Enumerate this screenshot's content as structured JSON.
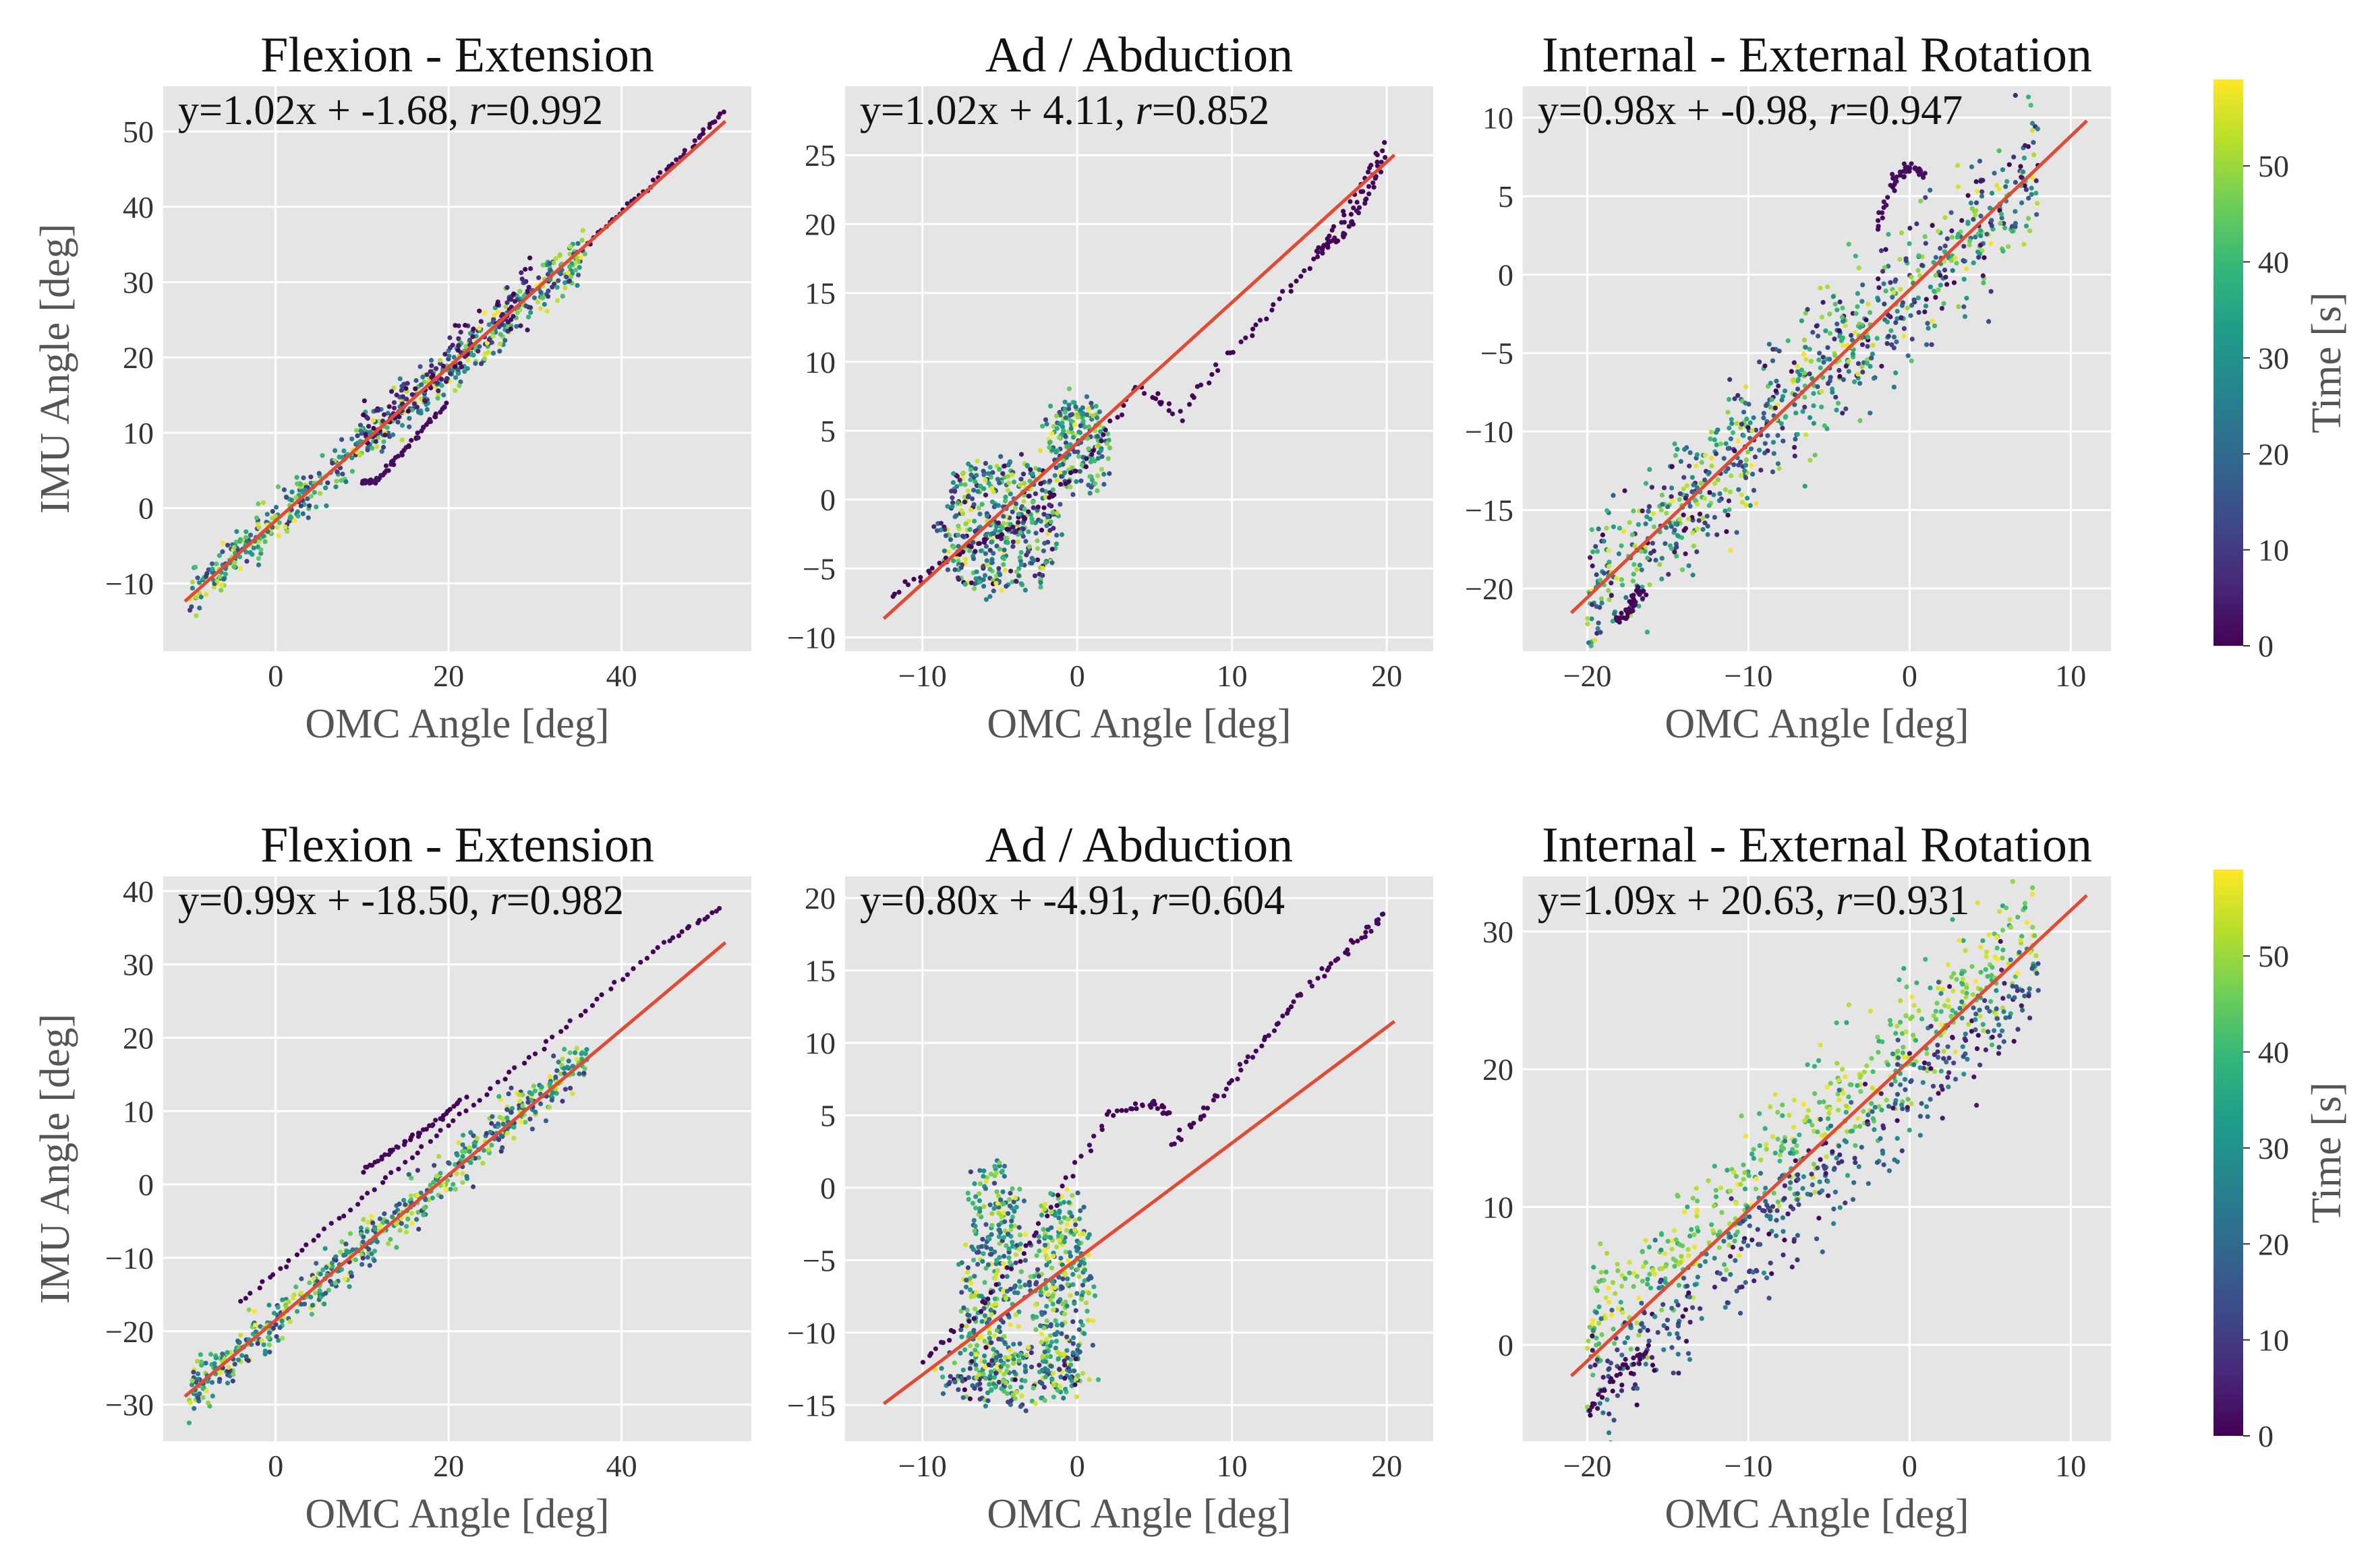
{
  "figure": {
    "colorbar": {
      "label": "Time [s]",
      "min": 0,
      "max": 59,
      "ticks": [
        "0",
        "10",
        "20",
        "30",
        "40",
        "50"
      ]
    },
    "colors": {
      "panel_bg": "#e5e5e5",
      "grid": "#ffffff",
      "fit_line": "#e24a33",
      "colormap": [
        "#440154",
        "#482878",
        "#3e4a89",
        "#31688e",
        "#26828e",
        "#1f9e89",
        "#35b779",
        "#6ece58",
        "#b5de2b",
        "#fde725"
      ]
    }
  },
  "chart_data": [
    {
      "type": "scatter",
      "title": "Flexion - Extension",
      "xlabel": "OMC Angle [deg]",
      "ylabel": "IMU Angle [deg]",
      "eq": {
        "prefix": "y=1.02x + -1.68, ",
        "r_label": "r",
        "r_value": "=0.992"
      },
      "fit": {
        "slope": 1.02,
        "intercept": -1.68,
        "x_range": [
          -10.5,
          52
        ]
      },
      "xlim": [
        -13,
        55
      ],
      "ylim": [
        -19,
        56
      ],
      "xticks": [
        {
          "v": 0,
          "label": "0"
        },
        {
          "v": 20,
          "label": "20"
        },
        {
          "v": 40,
          "label": "40"
        }
      ],
      "yticks": [
        {
          "v": -10,
          "label": "−10"
        },
        {
          "v": 0,
          "label": "0"
        },
        {
          "v": 10,
          "label": "10"
        },
        {
          "v": 20,
          "label": "20"
        },
        {
          "v": 30,
          "label": "30"
        },
        {
          "v": 40,
          "label": "40"
        },
        {
          "v": 50,
          "label": "50"
        }
      ],
      "clusters": [
        {
          "x": [
            -10,
            36
          ],
          "slope": 1.0,
          "intercept": -1.7,
          "spread": 1.6,
          "n": 620,
          "t": [
            8,
            59
          ]
        },
        {
          "x": [
            10,
            30
          ],
          "slope": 1.02,
          "intercept": -0.5,
          "spread": 2.0,
          "n": 120,
          "t": [
            0,
            8
          ]
        }
      ],
      "trails": [
        {
          "x": [
            36,
            42,
            48,
            52
          ],
          "y": [
            35,
            41.5,
            48,
            53
          ],
          "t": 0
        },
        {
          "x": [
            10,
            11.5,
            14,
            17,
            20
          ],
          "y": [
            3.5,
            3.5,
            6.5,
            10.5,
            14
          ],
          "t": 1
        }
      ]
    },
    {
      "type": "scatter",
      "title": "Ad / Abduction",
      "xlabel": "OMC Angle [deg]",
      "ylabel": "",
      "eq": {
        "prefix": "y=1.02x + 4.11, ",
        "r_label": "r",
        "r_value": "=0.852"
      },
      "fit": {
        "slope": 1.02,
        "intercept": 4.11,
        "x_range": [
          -12.5,
          20.5
        ]
      },
      "xlim": [
        -15,
        23
      ],
      "ylim": [
        -11,
        30
      ],
      "xticks": [
        {
          "v": -10,
          "label": "−10"
        },
        {
          "v": 0,
          "label": "0"
        },
        {
          "v": 10,
          "label": "10"
        },
        {
          "v": 20,
          "label": "20"
        }
      ],
      "yticks": [
        {
          "v": -10,
          "label": "−10"
        },
        {
          "v": -5,
          "label": "−5"
        },
        {
          "v": 0,
          "label": "0"
        },
        {
          "v": 5,
          "label": "5"
        },
        {
          "v": 10,
          "label": "10"
        },
        {
          "v": 15,
          "label": "15"
        },
        {
          "v": 20,
          "label": "20"
        },
        {
          "v": 25,
          "label": "25"
        }
      ],
      "blobs": [
        {
          "cx": -5,
          "cy": -2,
          "rx": 4,
          "ry": 5,
          "n": 450,
          "t": [
            0,
            59
          ]
        },
        {
          "cx": 0,
          "cy": 4,
          "rx": 2,
          "ry": 3.5,
          "n": 200,
          "t": [
            10,
            59
          ]
        }
      ],
      "trails": [
        {
          "x": [
            -12,
            -8,
            -4,
            0,
            4,
            7
          ],
          "y": [
            -7,
            -4,
            -2,
            2,
            8,
            6
          ],
          "t": 0
        },
        {
          "x": [
            7,
            11,
            15,
            18,
            20
          ],
          "y": [
            7,
            12,
            17,
            22,
            26
          ],
          "t": 0
        },
        {
          "x": [
            15.5,
            17,
            18.5,
            20
          ],
          "y": [
            18,
            19,
            21.5,
            25
          ],
          "t": 0
        }
      ]
    },
    {
      "type": "scatter",
      "title": "Internal - External Rotation",
      "xlabel": "OMC Angle [deg]",
      "ylabel": "",
      "eq": {
        "prefix": "y=0.98x + -0.98, ",
        "r_label": "r",
        "r_value": "=0.947"
      },
      "fit": {
        "slope": 0.98,
        "intercept": -0.98,
        "x_range": [
          -21,
          11
        ]
      },
      "xlim": [
        -24,
        12.5
      ],
      "ylim": [
        -24,
        12
      ],
      "xticks": [
        {
          "v": -20,
          "label": "−20"
        },
        {
          "v": -10,
          "label": "−10"
        },
        {
          "v": 0,
          "label": "0"
        },
        {
          "v": 10,
          "label": "10"
        }
      ],
      "yticks": [
        {
          "v": -20,
          "label": "−20"
        },
        {
          "v": -15,
          "label": "−15"
        },
        {
          "v": -10,
          "label": "−10"
        },
        {
          "v": -5,
          "label": "−5"
        },
        {
          "v": 0,
          "label": "0"
        },
        {
          "v": 5,
          "label": "5"
        },
        {
          "v": 10,
          "label": "10"
        }
      ],
      "clusters": [
        {
          "x": [
            -20,
            8
          ],
          "slope": 0.98,
          "intercept": -1.0,
          "spread": 2.2,
          "n": 850,
          "t": [
            0,
            59
          ]
        }
      ],
      "trails": [
        {
          "x": [
            -18,
            -17.5,
            -17,
            -16.5
          ],
          "y": [
            -22,
            -21.5,
            -20.5,
            -20
          ],
          "t": 0
        },
        {
          "x": [
            -2,
            -1,
            0,
            1
          ],
          "y": [
            3,
            6,
            7,
            6
          ],
          "t": 1
        }
      ]
    },
    {
      "type": "scatter",
      "title": "Flexion - Extension",
      "xlabel": "OMC Angle [deg]",
      "ylabel": "IMU Angle [deg]",
      "eq": {
        "prefix": "y=0.99x + -18.50, ",
        "r_label": "r",
        "r_value": "=0.982"
      },
      "fit": {
        "slope": 0.99,
        "intercept": -18.5,
        "x_range": [
          -10.5,
          52
        ]
      },
      "xlim": [
        -13,
        55
      ],
      "ylim": [
        -35,
        42
      ],
      "xticks": [
        {
          "v": 0,
          "label": "0"
        },
        {
          "v": 20,
          "label": "20"
        },
        {
          "v": 40,
          "label": "40"
        }
      ],
      "yticks": [
        {
          "v": -30,
          "label": "−30"
        },
        {
          "v": -20,
          "label": "−20"
        },
        {
          "v": -10,
          "label": "−10"
        },
        {
          "v": 0,
          "label": "0"
        },
        {
          "v": 10,
          "label": "10"
        },
        {
          "v": 20,
          "label": "20"
        },
        {
          "v": 30,
          "label": "30"
        },
        {
          "v": 40,
          "label": "40"
        }
      ],
      "clusters": [
        {
          "x": [
            -10,
            36
          ],
          "slope": 1.0,
          "intercept": -18.5,
          "spread": 1.6,
          "n": 620,
          "t": [
            8,
            59
          ]
        }
      ],
      "trails": [
        {
          "x": [
            -4,
            5,
            15,
            25,
            35,
            45,
            52
          ],
          "y": [
            -16,
            -7,
            3,
            13,
            23,
            33,
            38
          ],
          "t": 0
        },
        {
          "x": [
            10,
            14,
            18,
            22
          ],
          "y": [
            2,
            5,
            8,
            12
          ],
          "t": 0
        }
      ]
    },
    {
      "type": "scatter",
      "title": "Ad / Abduction",
      "xlabel": "OMC Angle [deg]",
      "ylabel": "",
      "eq": {
        "prefix": "y=0.80x + -4.91, ",
        "r_label": "r",
        "r_value": "=0.604"
      },
      "fit": {
        "slope": 0.8,
        "intercept": -4.91,
        "x_range": [
          -12.5,
          20.5
        ]
      },
      "xlim": [
        -15,
        23
      ],
      "ylim": [
        -17.5,
        21.5
      ],
      "xticks": [
        {
          "v": -10,
          "label": "−10"
        },
        {
          "v": 0,
          "label": "0"
        },
        {
          "v": 10,
          "label": "10"
        },
        {
          "v": 20,
          "label": "20"
        }
      ],
      "yticks": [
        {
          "v": -15,
          "label": "−15"
        },
        {
          "v": -10,
          "label": "−10"
        },
        {
          "v": -5,
          "label": "−5"
        },
        {
          "v": 0,
          "label": "0"
        },
        {
          "v": 5,
          "label": "5"
        },
        {
          "v": 10,
          "label": "10"
        },
        {
          "v": 15,
          "label": "15"
        },
        {
          "v": 20,
          "label": "20"
        }
      ],
      "blobs": [
        {
          "cx": -5.5,
          "cy": -6,
          "rx": 2,
          "ry": 8,
          "n": 300,
          "t": [
            10,
            59
          ]
        },
        {
          "cx": -1,
          "cy": -7,
          "rx": 2,
          "ry": 7,
          "n": 300,
          "t": [
            10,
            59
          ]
        },
        {
          "cx": -4,
          "cy": -13,
          "rx": 5,
          "ry": 2,
          "n": 200,
          "t": [
            0,
            59
          ]
        }
      ],
      "trails": [
        {
          "x": [
            -10,
            -6,
            -2,
            2,
            5,
            6
          ],
          "y": [
            -12,
            -8,
            -2,
            5,
            6,
            5
          ],
          "t": 0
        },
        {
          "x": [
            6,
            9,
            12,
            15,
            18,
            20
          ],
          "y": [
            3,
            6,
            10,
            14,
            17,
            19
          ],
          "t": 0
        }
      ]
    },
    {
      "type": "scatter",
      "title": "Internal - External Rotation",
      "xlabel": "OMC Angle [deg]",
      "ylabel": "",
      "eq": {
        "prefix": "y=1.09x + 20.63, ",
        "r_label": "r",
        "r_value": "=0.931"
      },
      "fit": {
        "slope": 1.09,
        "intercept": 20.63,
        "x_range": [
          -21,
          11
        ]
      },
      "xlim": [
        -24,
        12.5
      ],
      "ylim": [
        -7,
        34
      ],
      "xticks": [
        {
          "v": -20,
          "label": "−20"
        },
        {
          "v": -10,
          "label": "−10"
        },
        {
          "v": 0,
          "label": "0"
        },
        {
          "v": 10,
          "label": "10"
        }
      ],
      "yticks": [
        {
          "v": 0,
          "label": "0"
        },
        {
          "v": 10,
          "label": "10"
        },
        {
          "v": 20,
          "label": "20"
        },
        {
          "v": 30,
          "label": "30"
        }
      ],
      "clusters": [
        {
          "x": [
            -20,
            8
          ],
          "slope": 1.05,
          "intercept": 22.0,
          "spread": 2.2,
          "n": 520,
          "t": [
            35,
            59
          ]
        },
        {
          "x": [
            -20,
            8
          ],
          "slope": 1.05,
          "intercept": 18.0,
          "spread": 2.2,
          "n": 420,
          "t": [
            0,
            30
          ]
        }
      ],
      "trails": [
        {
          "x": [
            -20,
            -18,
            -16
          ],
          "y": [
            -5,
            -2,
            0
          ],
          "t": 0
        }
      ]
    }
  ]
}
